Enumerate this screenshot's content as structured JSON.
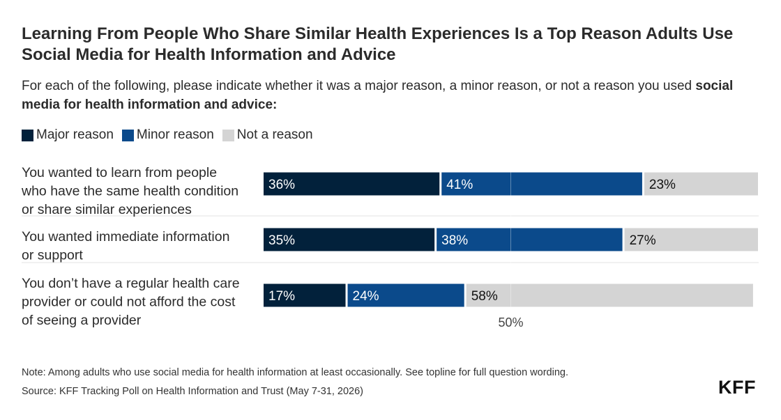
{
  "title": "Learning From People Who Share Similar Health Experiences Is a Top Reason Adults Use Social Media for Health Information and Advice",
  "subtitle": {
    "text": "For each of the following, please indicate whether it was a major reason, a minor reason, or not a reason you used ",
    "bold": "social media for health information and advice:"
  },
  "note": "Note: Among adults who use social media for health information at least occasionally. See topline for full question wording.",
  "source": "Source: KFF Tracking Poll on Health Information and Trust (May 7-31, 2026)",
  "logo": "KFF",
  "colors": {
    "major": "#02213b",
    "minor": "#0b4a8b",
    "not": "#d4d4d4",
    "grid": "#e3e3e3"
  },
  "chart_data": {
    "type": "bar",
    "orientation": "horizontal",
    "stacked": true,
    "categories": [
      [
        "You wanted to learn from people",
        "who have the same health condition",
        "or share similar experiences"
      ],
      [
        "You wanted immediate information",
        "or support"
      ],
      [
        "You don’t have a regular health care",
        "provider or could not afford the cost",
        "of seeing a provider"
      ]
    ],
    "series": [
      {
        "name": "Major reason",
        "values": [
          36,
          35,
          17
        ],
        "labels": [
          "36%",
          "35%",
          "17%"
        ]
      },
      {
        "name": "Minor reason",
        "values": [
          41,
          38,
          24
        ],
        "labels": [
          "41%",
          "38%",
          "24%"
        ]
      },
      {
        "name": "Not a reason",
        "values": [
          23,
          27,
          58
        ],
        "labels": [
          "23%",
          "27%",
          "58%"
        ]
      }
    ],
    "xlim": [
      0,
      100
    ],
    "reference_line": {
      "value": 50,
      "label": "50%"
    },
    "legend_position": "top-left"
  }
}
